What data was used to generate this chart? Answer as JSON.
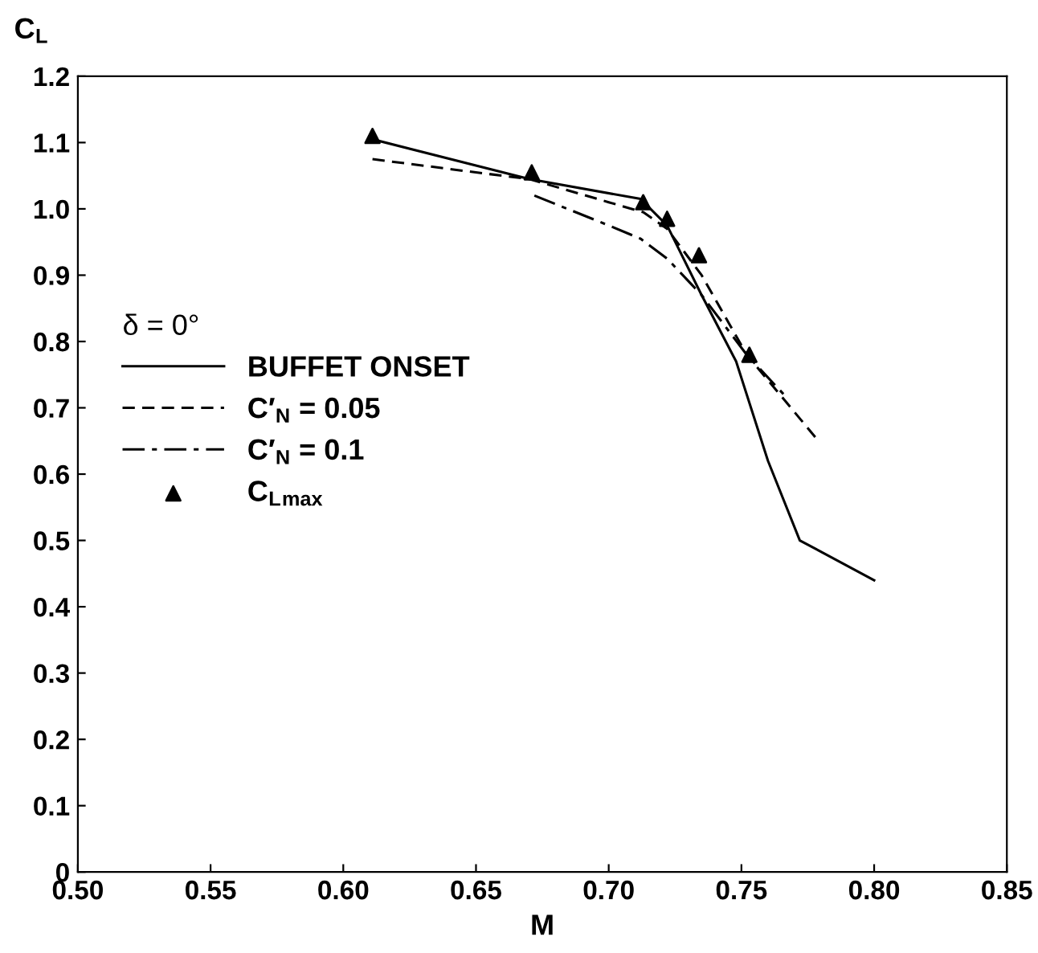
{
  "chart_data": {
    "type": "line",
    "xlabel": "M",
    "ylabel": "C$_{L}$",
    "legend_title": "δ = 0°",
    "series": [
      {
        "name": "BUFFET ONSET",
        "color": "#000000",
        "line_style": "solid",
        "marker": "none",
        "x": [
          0.611,
          0.67,
          0.712,
          0.722,
          0.735,
          0.748,
          0.76,
          0.772,
          0.8
        ],
        "values": [
          1.105,
          1.045,
          1.015,
          0.975,
          0.87,
          0.77,
          0.62,
          0.5,
          0.44
        ]
      },
      {
        "name": "C′$_{N}$ = 0.05",
        "color": "#000000",
        "line_style": "dashed",
        "marker": "none",
        "x": [
          0.611,
          0.65,
          0.67,
          0.7,
          0.713,
          0.722,
          0.735,
          0.752,
          0.778
        ],
        "values": [
          1.075,
          1.055,
          1.045,
          1.01,
          0.995,
          0.97,
          0.9,
          0.78,
          0.655
        ]
      },
      {
        "name": "C′$_{N}$ = 0.1",
        "color": "#000000",
        "line_style": "dashdot",
        "marker": "none",
        "x": [
          0.672,
          0.7,
          0.712,
          0.722,
          0.735,
          0.752,
          0.766
        ],
        "values": [
          1.02,
          0.975,
          0.955,
          0.925,
          0.87,
          0.78,
          0.72
        ]
      },
      {
        "name": "C$_{L}$$_{max}$",
        "type": "scatter",
        "color": "#000000",
        "marker": "triangle",
        "x": [
          0.611,
          0.671,
          0.713,
          0.722,
          0.734,
          0.753
        ],
        "values": [
          1.11,
          1.055,
          1.01,
          0.985,
          0.93,
          0.78
        ]
      }
    ],
    "xlim": [
      0.5,
      0.85
    ],
    "xticks": [
      {
        "value": 0.5,
        "label": "0.50"
      },
      {
        "value": 0.55,
        "label": "0.55"
      },
      {
        "value": 0.6,
        "label": "0.60"
      },
      {
        "value": 0.65,
        "label": "0.65"
      },
      {
        "value": 0.7,
        "label": "0.70"
      },
      {
        "value": 0.75,
        "label": "0.75"
      },
      {
        "value": 0.8,
        "label": "0.80"
      },
      {
        "value": 0.85,
        "label": "0.85"
      }
    ],
    "ylim": [
      0,
      1.2
    ],
    "yticks": [
      0,
      0.1,
      0.2,
      0.3,
      0.4,
      0.5,
      0.6,
      0.7,
      0.8,
      0.9,
      {
        "value": 1.0,
        "label": "1.0"
      },
      1.1,
      1.2
    ],
    "grid": false,
    "legend": "left"
  }
}
